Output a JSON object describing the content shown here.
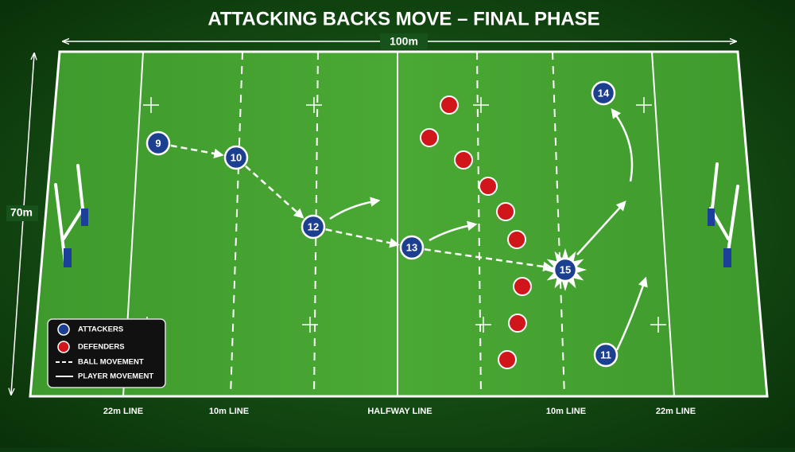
{
  "title": "ATTACKING BACKS MOVE – FINAL PHASE",
  "width_label": "100m",
  "height_label": "70m",
  "field_lines": [
    "22m LINE",
    "10m LINE",
    "HALFWAY LINE",
    "10m LINE",
    "22m LINE"
  ],
  "attackers": [
    "9",
    "10",
    "12",
    "13",
    "15",
    "14",
    "11"
  ],
  "legend": [
    "ATTACKERS",
    "DEFENDERS",
    "BALL MOVEMENT",
    "PLAYER MOVEMENT"
  ]
}
